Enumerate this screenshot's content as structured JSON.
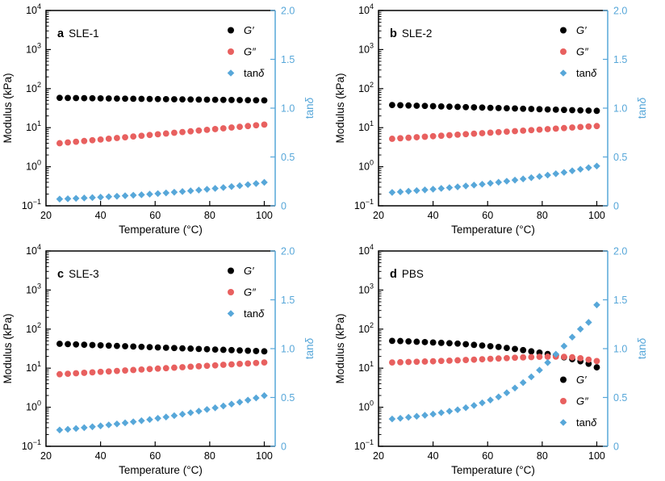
{
  "colors": {
    "g_prime": "#000000",
    "g_double_prime": "#e8605f",
    "tan_delta": "#57a7d9",
    "axis_black": "#000000",
    "background": "#ffffff"
  },
  "chart_data": {
    "type": "scatter",
    "layout": "2x2 panel grid",
    "x_label": "Temperature (°C)",
    "y_left_label": "Modulus (kPa)",
    "y_right_label": "tanδ",
    "x_lim": [
      20,
      104
    ],
    "y_left_scale": "log",
    "y_left_lim_exponents": [
      -1,
      4
    ],
    "y_right_lim": [
      0,
      2
    ],
    "x_ticks": [
      [
        20,
        "20"
      ],
      [
        40,
        "40"
      ],
      [
        60,
        "60"
      ],
      [
        80,
        "80"
      ],
      [
        100,
        "100"
      ]
    ],
    "y_right_ticks": [
      [
        0,
        "0"
      ],
      [
        0.5,
        "0.5"
      ],
      [
        1,
        "1.0"
      ],
      [
        1.5,
        "1.5"
      ],
      [
        2,
        "2.0"
      ]
    ],
    "x": [
      25,
      28,
      31,
      34,
      37,
      40,
      43,
      46,
      49,
      52,
      55,
      58,
      61,
      64,
      67,
      70,
      73,
      76,
      79,
      82,
      85,
      88,
      91,
      94,
      97,
      100
    ],
    "panels": [
      {
        "panel_label": "a",
        "sample": "SLE-1",
        "legend_position": "top-right",
        "series": [
          {
            "id": "g-prime",
            "name": "G′",
            "marker": "circle",
            "color": "#000000",
            "axis": "left",
            "values": [
              58,
              57.7,
              57.3,
              57,
              56.6,
              56.3,
              56,
              55.6,
              55.3,
              55,
              54.7,
              54.3,
              54,
              53.7,
              53.4,
              53.1,
              52.7,
              52.4,
              52.1,
              51.8,
              51.5,
              51.2,
              50.9,
              50.6,
              50.3,
              50
            ]
          },
          {
            "id": "g-double-prime",
            "name": "G″",
            "marker": "circle",
            "color": "#e8605f",
            "axis": "left",
            "values": [
              4,
              4.18,
              4.37,
              4.56,
              4.77,
              4.98,
              5.21,
              5.44,
              5.68,
              5.94,
              6.21,
              6.49,
              6.77,
              7.08,
              7.4,
              7.73,
              8.07,
              8.44,
              8.82,
              9.21,
              9.63,
              10.1,
              10.5,
              11,
              11.5,
              12
            ]
          },
          {
            "id": "tan-delta",
            "name": "tanδ",
            "marker": "diamond",
            "color": "#57a7d9",
            "axis": "right",
            "values": [
              0.069,
              0.072,
              0.076,
              0.08,
              0.084,
              0.088,
              0.093,
              0.098,
              0.103,
              0.108,
              0.113,
              0.119,
              0.125,
              0.132,
              0.139,
              0.146,
              0.153,
              0.161,
              0.169,
              0.178,
              0.187,
              0.197,
              0.206,
              0.217,
              0.228,
              0.24
            ]
          }
        ]
      },
      {
        "panel_label": "b",
        "sample": "SLE-2",
        "legend_position": "top-right",
        "series": [
          {
            "id": "g-prime",
            "name": "G′",
            "marker": "circle",
            "color": "#000000",
            "axis": "left",
            "values": [
              38,
              37.5,
              37,
              36.5,
              36,
              35.5,
              35,
              34.5,
              34.1,
              33.6,
              33.1,
              32.7,
              32.2,
              31.8,
              31.4,
              31,
              30.5,
              30.1,
              29.7,
              29.3,
              28.9,
              28.5,
              28.1,
              27.7,
              27.4,
              27
            ]
          },
          {
            "id": "g-double-prime",
            "name": "G″",
            "marker": "circle",
            "color": "#e8605f",
            "axis": "left",
            "values": [
              5.2,
              5.36,
              5.52,
              5.69,
              5.86,
              6.04,
              6.22,
              6.41,
              6.61,
              6.81,
              7.02,
              7.23,
              7.45,
              7.68,
              7.91,
              8.15,
              8.4,
              8.66,
              8.92,
              9.19,
              9.47,
              9.76,
              10.1,
              10.4,
              10.7,
              11
            ]
          },
          {
            "id": "tan-delta",
            "name": "tanδ",
            "marker": "diamond",
            "color": "#57a7d9",
            "axis": "right",
            "values": [
              0.137,
              0.143,
              0.149,
              0.156,
              0.163,
              0.17,
              0.178,
              0.186,
              0.194,
              0.203,
              0.212,
              0.221,
              0.231,
              0.241,
              0.252,
              0.263,
              0.275,
              0.288,
              0.3,
              0.314,
              0.328,
              0.342,
              0.358,
              0.374,
              0.39,
              0.407
            ]
          }
        ]
      },
      {
        "panel_label": "c",
        "sample": "SLE-3",
        "legend_position": "top-right",
        "series": [
          {
            "id": "g-prime",
            "name": "G′",
            "marker": "circle",
            "color": "#000000",
            "axis": "left",
            "values": [
              42,
              41.3,
              40.5,
              39.8,
              39.1,
              38.4,
              37.8,
              37.1,
              36.5,
              35.8,
              35.2,
              34.6,
              34,
              33.4,
              32.8,
              32.2,
              31.7,
              31.1,
              30.6,
              30,
              29.5,
              29,
              28.5,
              28,
              27.5,
              27
            ]
          },
          {
            "id": "g-double-prime",
            "name": "G″",
            "marker": "circle",
            "color": "#e8605f",
            "axis": "left",
            "values": [
              7,
              7.2,
              7.4,
              7.61,
              7.82,
              8.04,
              8.26,
              8.5,
              8.73,
              8.98,
              9.23,
              9.49,
              9.76,
              10,
              10.3,
              10.6,
              10.9,
              11.2,
              11.5,
              11.8,
              12.2,
              12.5,
              12.9,
              13.2,
              13.6,
              14
            ]
          },
          {
            "id": "tan-delta",
            "name": "tanδ",
            "marker": "diamond",
            "color": "#57a7d9",
            "axis": "right",
            "values": [
              0.167,
              0.174,
              0.182,
              0.191,
              0.2,
              0.209,
              0.219,
              0.229,
              0.24,
              0.251,
              0.262,
              0.274,
              0.287,
              0.3,
              0.314,
              0.329,
              0.344,
              0.36,
              0.377,
              0.394,
              0.413,
              0.432,
              0.452,
              0.473,
              0.495,
              0.519
            ]
          }
        ]
      },
      {
        "panel_label": "d",
        "sample": "PBS",
        "legend_position": "bottom-right",
        "series": [
          {
            "id": "g-prime",
            "name": "G′",
            "marker": "circle",
            "color": "#000000",
            "axis": "left",
            "values": [
              50,
              49.5,
              48.5,
              47.5,
              46.5,
              45.5,
              44.5,
              43.5,
              42.5,
              41,
              39.5,
              38,
              36.5,
              35,
              33,
              31,
              29,
              27,
              25,
              23,
              21,
              19,
              17,
              15,
              13,
              10.5
            ]
          },
          {
            "id": "g-double-prime",
            "name": "G″",
            "marker": "circle",
            "color": "#e8605f",
            "axis": "left",
            "values": [
              14,
              14.2,
              14.4,
              14.6,
              14.8,
              15,
              15.3,
              15.6,
              15.9,
              16.2,
              16.5,
              16.9,
              17.3,
              17.7,
              18.1,
              18.5,
              18.9,
              19.2,
              19.5,
              19.7,
              19.8,
              19.5,
              19,
              18,
              16.5,
              15.2
            ]
          },
          {
            "id": "tan-delta",
            "name": "tanδ",
            "marker": "diamond",
            "color": "#57a7d9",
            "axis": "right",
            "values": [
              0.28,
              0.287,
              0.297,
              0.307,
              0.318,
              0.33,
              0.344,
              0.359,
              0.374,
              0.395,
              0.418,
              0.445,
              0.474,
              0.506,
              0.548,
              0.597,
              0.652,
              0.711,
              0.78,
              0.857,
              0.943,
              1.026,
              1.118,
              1.2,
              1.269,
              1.448
            ]
          }
        ]
      }
    ]
  }
}
